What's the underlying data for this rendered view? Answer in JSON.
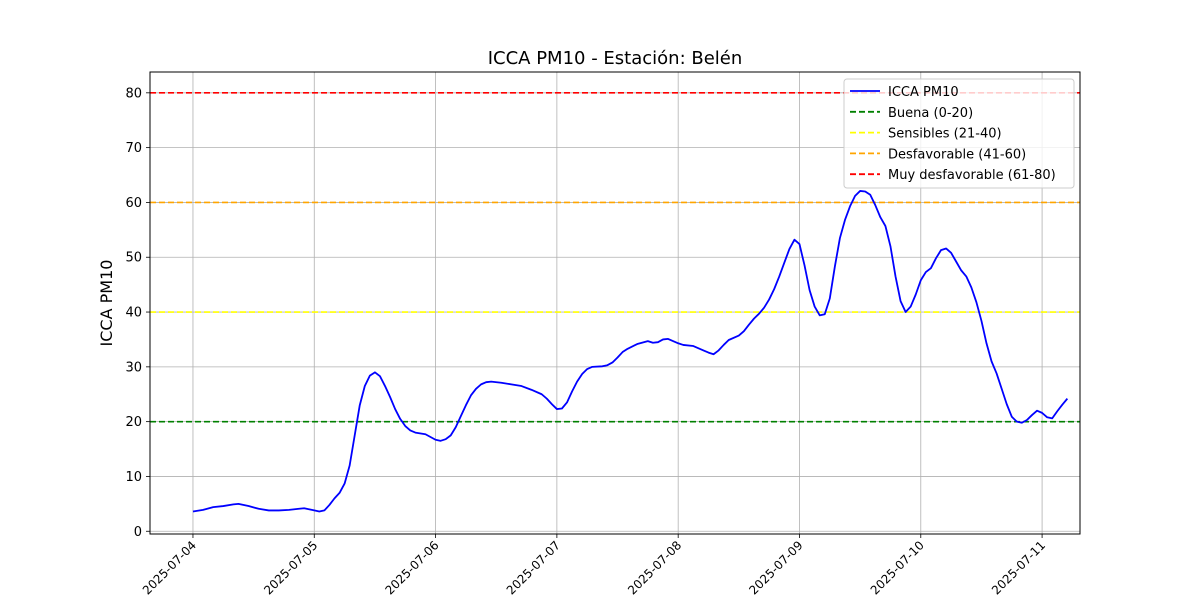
{
  "chart_data": {
    "type": "line",
    "title": "ICCA PM10 - Estación: Belén",
    "xlabel": "",
    "ylabel": "ICCA PM10",
    "xlim": [
      "2025-07-03 15:30",
      "2025-07-11 07:30"
    ],
    "ylim": [
      -0.5,
      83.8
    ],
    "x_ticks": [
      "2025-07-04",
      "2025-07-05",
      "2025-07-06",
      "2025-07-07",
      "2025-07-08",
      "2025-07-09",
      "2025-07-10",
      "2025-07-11"
    ],
    "y_ticks": [
      0,
      10,
      20,
      30,
      40,
      50,
      60,
      70,
      80
    ],
    "grid": true,
    "legend_position": "top-right",
    "series": [
      {
        "name": "ICCA PM10",
        "color": "#0000ff",
        "style": "solid",
        "points": [
          [
            "2025-07-04 00:00",
            3.6
          ],
          [
            "2025-07-04 02:00",
            3.9
          ],
          [
            "2025-07-04 04:00",
            4.4
          ],
          [
            "2025-07-04 06:00",
            4.6
          ],
          [
            "2025-07-04 08:00",
            4.9
          ],
          [
            "2025-07-04 09:00",
            5.0
          ],
          [
            "2025-07-04 11:00",
            4.6
          ],
          [
            "2025-07-04 13:00",
            4.1
          ],
          [
            "2025-07-04 15:00",
            3.8
          ],
          [
            "2025-07-04 17:00",
            3.8
          ],
          [
            "2025-07-04 19:00",
            3.9
          ],
          [
            "2025-07-04 21:00",
            4.1
          ],
          [
            "2025-07-04 22:00",
            4.2
          ],
          [
            "2025-07-05 00:00",
            3.8
          ],
          [
            "2025-07-05 01:00",
            3.6
          ],
          [
            "2025-07-05 02:00",
            3.8
          ],
          [
            "2025-07-05 03:00",
            4.8
          ],
          [
            "2025-07-05 04:00",
            6.0
          ],
          [
            "2025-07-05 05:00",
            7.0
          ],
          [
            "2025-07-05 06:00",
            8.7
          ],
          [
            "2025-07-05 07:00",
            12.0
          ],
          [
            "2025-07-05 08:00",
            17.5
          ],
          [
            "2025-07-05 09:00",
            23.0
          ],
          [
            "2025-07-05 10:00",
            26.5
          ],
          [
            "2025-07-05 11:00",
            28.4
          ],
          [
            "2025-07-05 12:00",
            29.0
          ],
          [
            "2025-07-05 13:00",
            28.3
          ],
          [
            "2025-07-05 14:00",
            26.5
          ],
          [
            "2025-07-05 15:00",
            24.5
          ],
          [
            "2025-07-05 16:00",
            22.3
          ],
          [
            "2025-07-05 17:00",
            20.5
          ],
          [
            "2025-07-05 18:00",
            19.2
          ],
          [
            "2025-07-05 19:00",
            18.4
          ],
          [
            "2025-07-05 20:00",
            18.0
          ],
          [
            "2025-07-05 22:00",
            17.7
          ],
          [
            "2025-07-06 00:00",
            16.7
          ],
          [
            "2025-07-06 01:00",
            16.5
          ],
          [
            "2025-07-06 02:00",
            16.8
          ],
          [
            "2025-07-06 03:00",
            17.5
          ],
          [
            "2025-07-06 04:00",
            19.0
          ],
          [
            "2025-07-06 05:00",
            21.0
          ],
          [
            "2025-07-06 06:00",
            23.0
          ],
          [
            "2025-07-06 07:00",
            24.8
          ],
          [
            "2025-07-06 08:00",
            26.0
          ],
          [
            "2025-07-06 09:00",
            26.8
          ],
          [
            "2025-07-06 10:00",
            27.2
          ],
          [
            "2025-07-06 11:00",
            27.3
          ],
          [
            "2025-07-06 13:00",
            27.1
          ],
          [
            "2025-07-06 15:00",
            26.8
          ],
          [
            "2025-07-06 17:00",
            26.5
          ],
          [
            "2025-07-06 19:00",
            25.8
          ],
          [
            "2025-07-06 21:00",
            25.0
          ],
          [
            "2025-07-06 22:00",
            24.2
          ],
          [
            "2025-07-06 23:00",
            23.2
          ],
          [
            "2025-07-07 00:00",
            22.3
          ],
          [
            "2025-07-07 01:00",
            22.4
          ],
          [
            "2025-07-07 02:00",
            23.5
          ],
          [
            "2025-07-07 03:00",
            25.5
          ],
          [
            "2025-07-07 04:00",
            27.3
          ],
          [
            "2025-07-07 05:00",
            28.7
          ],
          [
            "2025-07-07 06:00",
            29.6
          ],
          [
            "2025-07-07 07:00",
            30.0
          ],
          [
            "2025-07-07 09:00",
            30.1
          ],
          [
            "2025-07-07 10:00",
            30.3
          ],
          [
            "2025-07-07 11:00",
            30.8
          ],
          [
            "2025-07-07 12:00",
            31.7
          ],
          [
            "2025-07-07 13:00",
            32.7
          ],
          [
            "2025-07-07 14:00",
            33.3
          ],
          [
            "2025-07-07 16:00",
            34.2
          ],
          [
            "2025-07-07 18:00",
            34.7
          ],
          [
            "2025-07-07 19:00",
            34.4
          ],
          [
            "2025-07-07 20:00",
            34.5
          ],
          [
            "2025-07-07 21:00",
            35.0
          ],
          [
            "2025-07-07 22:00",
            35.1
          ],
          [
            "2025-07-08 00:00",
            34.3
          ],
          [
            "2025-07-08 01:00",
            34.0
          ],
          [
            "2025-07-08 03:00",
            33.8
          ],
          [
            "2025-07-08 05:00",
            33.0
          ],
          [
            "2025-07-08 06:00",
            32.6
          ],
          [
            "2025-07-08 07:00",
            32.3
          ],
          [
            "2025-07-08 08:00",
            33.0
          ],
          [
            "2025-07-08 09:00",
            34.0
          ],
          [
            "2025-07-08 10:00",
            34.9
          ],
          [
            "2025-07-08 12:00",
            35.7
          ],
          [
            "2025-07-08 13:00",
            36.5
          ],
          [
            "2025-07-08 14:00",
            37.7
          ],
          [
            "2025-07-08 15:00",
            38.8
          ],
          [
            "2025-07-08 16:00",
            39.7
          ],
          [
            "2025-07-08 17:00",
            40.8
          ],
          [
            "2025-07-08 18:00",
            42.3
          ],
          [
            "2025-07-08 19:00",
            44.2
          ],
          [
            "2025-07-08 20:00",
            46.5
          ],
          [
            "2025-07-08 21:00",
            49.0
          ],
          [
            "2025-07-08 22:00",
            51.5
          ],
          [
            "2025-07-08 23:00",
            53.2
          ],
          [
            "2025-07-09 00:00",
            52.4
          ],
          [
            "2025-07-09 01:00",
            48.5
          ],
          [
            "2025-07-09 02:00",
            44.0
          ],
          [
            "2025-07-09 03:00",
            41.0
          ],
          [
            "2025-07-09 04:00",
            39.4
          ],
          [
            "2025-07-09 05:00",
            39.6
          ],
          [
            "2025-07-09 06:00",
            42.5
          ],
          [
            "2025-07-09 07:00",
            48.3
          ],
          [
            "2025-07-09 08:00",
            53.5
          ],
          [
            "2025-07-09 09:00",
            56.8
          ],
          [
            "2025-07-09 10:00",
            59.3
          ],
          [
            "2025-07-09 11:00",
            61.2
          ],
          [
            "2025-07-09 12:00",
            62.1
          ],
          [
            "2025-07-09 13:00",
            62.0
          ],
          [
            "2025-07-09 14:00",
            61.4
          ],
          [
            "2025-07-09 15:00",
            59.5
          ],
          [
            "2025-07-09 16:00",
            57.3
          ],
          [
            "2025-07-09 17:00",
            55.7
          ],
          [
            "2025-07-09 18:00",
            52.0
          ],
          [
            "2025-07-09 19:00",
            46.5
          ],
          [
            "2025-07-09 20:00",
            42.0
          ],
          [
            "2025-07-09 21:00",
            40.0
          ],
          [
            "2025-07-09 22:00",
            41.0
          ],
          [
            "2025-07-09 23:00",
            43.2
          ],
          [
            "2025-07-10 00:00",
            45.8
          ],
          [
            "2025-07-10 01:00",
            47.3
          ],
          [
            "2025-07-10 02:00",
            48.0
          ],
          [
            "2025-07-10 03:00",
            49.8
          ],
          [
            "2025-07-10 04:00",
            51.3
          ],
          [
            "2025-07-10 05:00",
            51.6
          ],
          [
            "2025-07-10 06:00",
            50.8
          ],
          [
            "2025-07-10 07:00",
            49.2
          ],
          [
            "2025-07-10 08:00",
            47.6
          ],
          [
            "2025-07-10 09:00",
            46.5
          ],
          [
            "2025-07-10 10:00",
            44.5
          ],
          [
            "2025-07-10 11:00",
            41.8
          ],
          [
            "2025-07-10 12:00",
            38.4
          ],
          [
            "2025-07-10 13:00",
            34.3
          ],
          [
            "2025-07-10 14:00",
            31.0
          ],
          [
            "2025-07-10 15:00",
            28.8
          ],
          [
            "2025-07-10 16:00",
            26.0
          ],
          [
            "2025-07-10 17:00",
            23.2
          ],
          [
            "2025-07-10 18:00",
            20.9
          ],
          [
            "2025-07-10 19:00",
            20.0
          ],
          [
            "2025-07-10 20:00",
            19.8
          ],
          [
            "2025-07-10 21:00",
            20.3
          ],
          [
            "2025-07-10 22:00",
            21.2
          ],
          [
            "2025-07-10 23:00",
            22.0
          ],
          [
            "2025-07-11 00:00",
            21.6
          ],
          [
            "2025-07-11 01:00",
            20.8
          ],
          [
            "2025-07-11 02:00",
            20.6
          ],
          [
            "2025-07-11 03:00",
            21.9
          ],
          [
            "2025-07-11 04:00",
            23.1
          ],
          [
            "2025-07-11 05:00",
            24.2
          ]
        ]
      }
    ],
    "thresholds": [
      {
        "name": "Buena (0-20)",
        "value": 20,
        "color": "#008000",
        "style": "dashed"
      },
      {
        "name": "Sensibles (21-40)",
        "value": 40,
        "color": "#ffff00",
        "style": "dashed"
      },
      {
        "name": "Desfavorable (41-60)",
        "value": 60,
        "color": "#ffa500",
        "style": "dashed"
      },
      {
        "name": "Muy desfavorable (61-80)",
        "value": 80,
        "color": "#ff0000",
        "style": "dashed"
      }
    ]
  }
}
